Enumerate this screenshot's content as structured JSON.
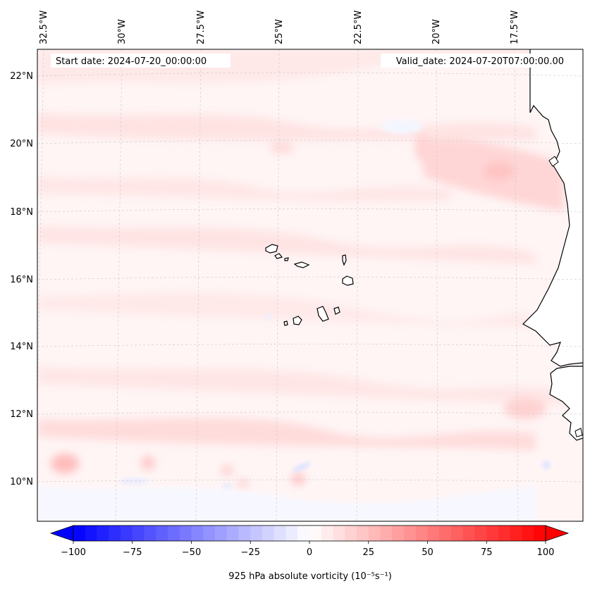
{
  "header": {
    "start_date": "Start date: 2024-07-20_00:00:00",
    "valid_date": "Valid_date: 2024-07-20T07:00:00.00"
  },
  "longitude_labels": [
    "32.5°W",
    "30°W",
    "27.5°W",
    "25°W",
    "22.5°W",
    "20°W",
    "17.5°W"
  ],
  "latitude_labels": [
    "22°N",
    "20°N",
    "18°N",
    "16°N",
    "14°N",
    "12°N",
    "10°N"
  ],
  "colorbar": {
    "label": "925 hPa absolute vorticity (10⁻⁵s⁻¹)",
    "min": -100,
    "max": 100,
    "ticks": [
      "−100",
      "−75",
      "−50",
      "−25",
      "0",
      "25",
      "50",
      "75",
      "100"
    ],
    "low_color": "#0000ff",
    "mid_color": "#ffffff",
    "high_color": "#ff0000"
  },
  "map": {
    "land_color": "#ffffff",
    "coastline_color": "#000000",
    "gridline_color": "#c8c8c8"
  }
}
